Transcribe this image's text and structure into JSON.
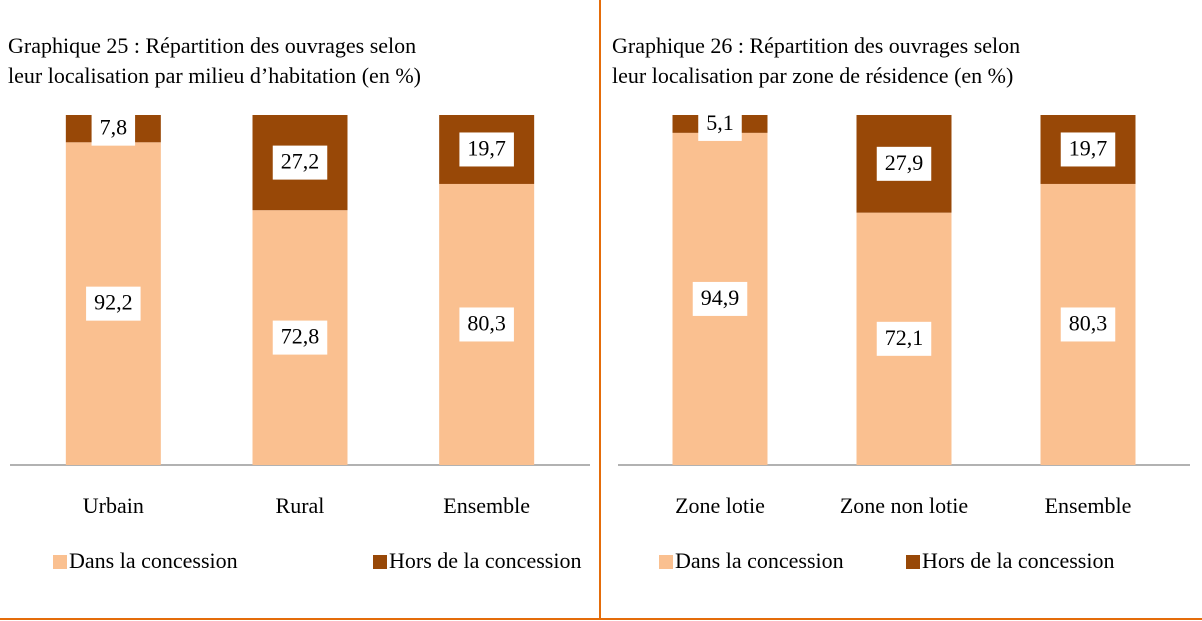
{
  "chart_data": [
    {
      "type": "stacked_bar",
      "title": [
        "Graphique 25 : Répartition des ouvrages selon",
        "leur localisation par milieu d’habitation (en %)"
      ],
      "categories": [
        "Urbain",
        "Rural",
        "Ensemble"
      ],
      "series": [
        {
          "name": "Dans la concession",
          "color": "#fac090",
          "values": [
            92.2,
            72.8,
            80.3
          ],
          "value_labels": [
            "92,2",
            "72,8",
            "80,3"
          ]
        },
        {
          "name": "Hors de la concession",
          "color": "#984807",
          "values": [
            7.8,
            27.2,
            19.7
          ],
          "value_labels": [
            "7,8",
            "27,2",
            "19,7"
          ]
        }
      ]
    },
    {
      "type": "stacked_bar",
      "title": [
        "Graphique 26 : Répartition des ouvrages selon",
        "leur localisation par zone de résidence (en %)"
      ],
      "categories": [
        "Zone lotie",
        "Zone non lotie",
        "Ensemble"
      ],
      "series": [
        {
          "name": "Dans la concession",
          "color": "#fac090",
          "values": [
            94.9,
            72.1,
            80.3
          ],
          "value_labels": [
            "94,9",
            "72,1",
            "80,3"
          ]
        },
        {
          "name": "Hors de la concession",
          "color": "#984807",
          "values": [
            5.1,
            27.9,
            19.7
          ],
          "value_labels": [
            "5,1",
            "27,9",
            "19,7"
          ]
        }
      ]
    }
  ]
}
